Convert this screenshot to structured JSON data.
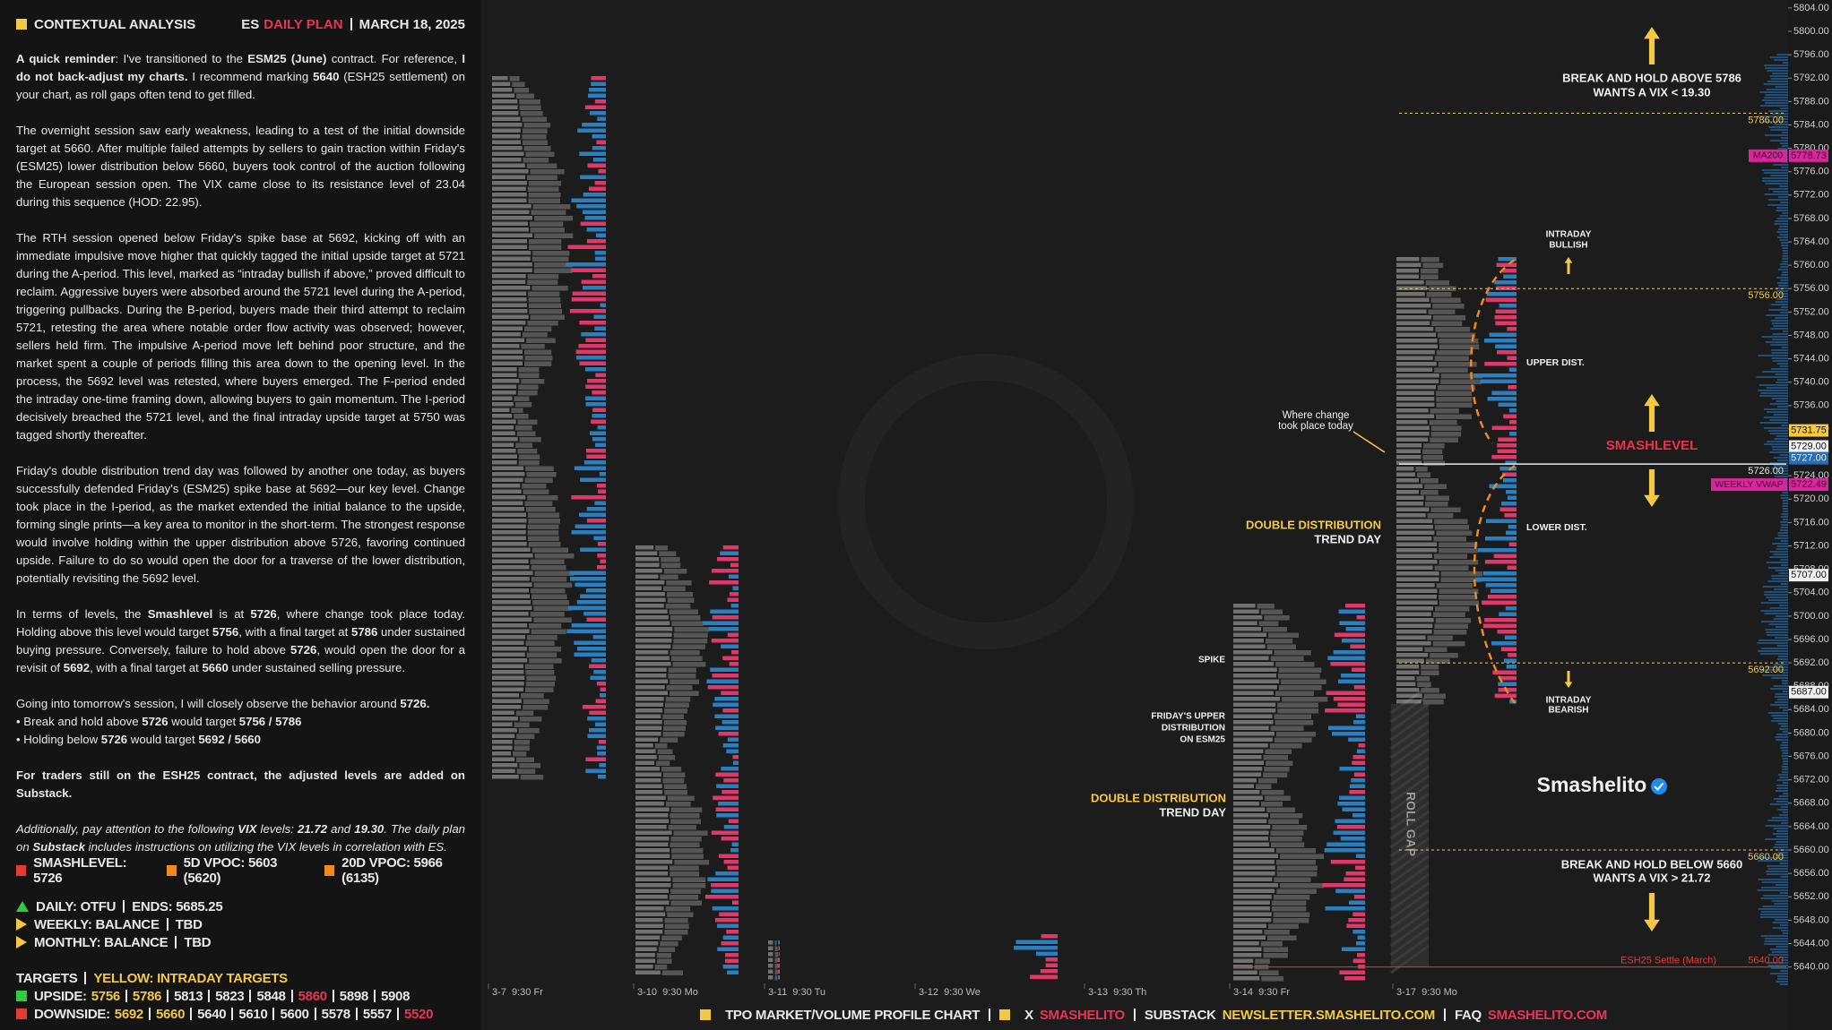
{
  "header": {
    "title": "CONTEXTUAL ANALYSIS",
    "symbol": "ES",
    "plan": "DAILY PLAN",
    "date": "MARCH 18, 2025"
  },
  "paragraphs": [
    [
      [
        {
          "t": "A quick reminder",
          "b": true
        },
        {
          "t": ": I've transitioned to the "
        },
        {
          "t": "ESM25 (June)",
          "b": true
        },
        {
          "t": " contract. For reference, "
        },
        {
          "t": "I do not back-adjust my charts.",
          "b": true
        },
        {
          "t": " I recommend marking "
        },
        {
          "t": "5640",
          "b": true
        },
        {
          "t": " (ESH25 settlement) on your chart, as roll gaps often tend to get filled."
        }
      ]
    ],
    [
      [
        {
          "t": "The overnight session saw early weakness, leading to a test of the initial downside target at 5660. After multiple failed attempts by sellers to gain traction within Friday's (ESM25) lower distribution below 5660, buyers took control of the auction following the European session open. The VIX came close to its resistance level of 23.04 during this sequence (HOD: 22.95)."
        }
      ]
    ],
    [
      [
        {
          "t": "The RTH session opened below Friday's spike base at 5692, kicking off with an immediate impulsive move higher that quickly tagged the initial upside target at 5721 during the A-period. This level, marked as “intraday bullish if above,” proved difficult to reclaim. Aggressive buyers were absorbed around the 5721 level during the A-period, triggering pullbacks. During the B-period, buyers made their third attempt to reclaim 5721, retesting the area where notable order flow activity was observed; however, sellers held firm. The impulsive A-period move left behind poor structure, and the market spent a couple of periods filling this area down to the opening level. In the process, the 5692 level was retested, where buyers emerged. The F-period ended the intraday one-time framing down, allowing buyers to gain momentum. The I-period decisively breached the 5721 level, and the final intraday upside target at 5750 was tagged shortly thereafter."
        }
      ]
    ],
    [
      [
        {
          "t": "Friday's double distribution trend day was followed by another one today, as buyers successfully defended Friday's (ESM25) spike base at 5692—our key level. Change took place in the I-period, as the market extended the initial balance to the upside, forming single prints—a key area to monitor in the short-term. The strongest response would involve holding within the upper distribution above 5726, favoring continued upside. Failure to do so would open the door for a traverse of the lower distribution, potentially revisiting the 5692 level."
        }
      ]
    ],
    [
      [
        {
          "t": "In terms of levels, the "
        },
        {
          "t": "Smashlevel",
          "b": true
        },
        {
          "t": " is at "
        },
        {
          "t": "5726",
          "b": true
        },
        {
          "t": ", where change took place today. Holding above this level would target "
        },
        {
          "t": "5756",
          "b": true
        },
        {
          "t": ", with a final target at "
        },
        {
          "t": "5786",
          "b": true
        },
        {
          "t": " under sustained buying pressure. Conversely, failure to hold above "
        },
        {
          "t": "5726",
          "b": true
        },
        {
          "t": ", would open the door for a revisit of "
        },
        {
          "t": "5692",
          "b": true
        },
        {
          "t": ", with a final target at "
        },
        {
          "t": "5660",
          "b": true
        },
        {
          "t": " under sustained selling pressure."
        }
      ]
    ],
    [
      [
        {
          "t": "Going into tomorrow's session, I will closely observe the behavior around "
        },
        {
          "t": "5726.",
          "b": true
        }
      ],
      [
        {
          "t": "• Break and hold above "
        },
        {
          "t": "5726",
          "b": true
        },
        {
          "t": " would target "
        },
        {
          "t": "5756 / 5786",
          "b": true
        }
      ],
      [
        {
          "t": "• Holding below "
        },
        {
          "t": "5726",
          "b": true
        },
        {
          "t": " would target "
        },
        {
          "t": "5692 / 5660",
          "b": true
        }
      ]
    ],
    [
      [
        {
          "t": "For traders still on the ESH25 contract, the adjusted levels are added on Substack.",
          "b": true
        }
      ]
    ],
    [
      [
        {
          "t": "Additionally, pay attention to the following ",
          "i": true
        },
        {
          "t": "VIX",
          "b": true,
          "i": true
        },
        {
          "t": " levels: ",
          "i": true
        },
        {
          "t": "21.72",
          "b": true,
          "i": true
        },
        {
          "t": " and ",
          "i": true
        },
        {
          "t": "19.30",
          "b": true,
          "i": true
        },
        {
          "t": ". The daily plan on ",
          "i": true
        },
        {
          "t": "Substack",
          "b": true,
          "i": true
        },
        {
          "t": " includes instructions on utilizing the VIX levels in correlation with ES.",
          "i": true
        }
      ]
    ]
  ],
  "vpoc": [
    {
      "text": "SMASHLEVEL: 5726",
      "color": "#e53935"
    },
    {
      "text": "5D VPOC: 5603 (5620)",
      "color": "#f08a1c"
    },
    {
      "text": "20D VPOC: 5966 (6135)",
      "color": "#f08a1c"
    }
  ],
  "bias": [
    {
      "text": "DAILY: OTFU",
      "extra": "ENDS: 5685.25",
      "marker": "up"
    },
    {
      "text": "WEEKLY: BALANCE",
      "extra": "TBD",
      "marker": "right"
    },
    {
      "text": "MONTHLY: BALANCE",
      "extra": "TBD",
      "marker": "right"
    }
  ],
  "targets": {
    "title": "TARGETS",
    "legend": "YELLOW: INTRADAY TARGETS",
    "upside": {
      "label": "UPSIDE:",
      "items": [
        {
          "text": "5756",
          "color": "#f5c842"
        },
        {
          "text": "5786",
          "color": "#f5c842"
        },
        {
          "text": "5813"
        },
        {
          "text": "5823"
        },
        {
          "text": "5848"
        },
        {
          "text": "5860",
          "color": "#e8345a"
        },
        {
          "text": "5898"
        },
        {
          "text": "5908"
        }
      ]
    },
    "downside": {
      "label": "DOWNSIDE:",
      "items": [
        {
          "text": "5692",
          "color": "#f5c842"
        },
        {
          "text": "5660",
          "color": "#f5c842"
        },
        {
          "text": "5640"
        },
        {
          "text": "5610"
        },
        {
          "text": "5600"
        },
        {
          "text": "5578"
        },
        {
          "text": "5557"
        },
        {
          "text": "5520",
          "color": "#e8345a"
        }
      ]
    }
  },
  "chart": {
    "price_axis": {
      "ticks": [
        {
          "value": 5640,
          "label": "5640.00"
        },
        {
          "value": 5644,
          "label": "5644.00"
        },
        {
          "value": 5648,
          "label": "5648.00"
        },
        {
          "value": 5652,
          "label": "5652.00"
        },
        {
          "value": 5656,
          "label": "5656.00"
        },
        {
          "value": 5660,
          "label": "5660.00"
        },
        {
          "value": 5664,
          "label": "5664.00"
        },
        {
          "value": 5668,
          "label": "5668.00"
        },
        {
          "value": 5672,
          "label": "5672.00"
        },
        {
          "value": 5676,
          "label": "5676.00"
        },
        {
          "value": 5680,
          "label": "5680.00"
        },
        {
          "value": 5684,
          "label": "5684.00"
        },
        {
          "value": 5688,
          "label": "5688.00"
        },
        {
          "value": 5692,
          "label": "5692.00"
        },
        {
          "value": 5696,
          "label": "5696.00"
        },
        {
          "value": 5700,
          "label": "5700.00"
        },
        {
          "value": 5704,
          "label": "5704.00"
        },
        {
          "value": 5708,
          "label": "5708.00"
        },
        {
          "value": 5712,
          "label": "5712.00"
        },
        {
          "value": 5716,
          "label": "5716.00"
        },
        {
          "value": 5720,
          "label": "5720.00"
        },
        {
          "value": 5724,
          "label": "5724.00"
        },
        {
          "value": 5728,
          "label": "5728.00"
        },
        {
          "value": 5732,
          "label": "5732.00"
        },
        {
          "value": 5736,
          "label": "5736.00"
        },
        {
          "value": 5740,
          "label": "5740.00"
        },
        {
          "value": 5744,
          "label": "5744.00"
        },
        {
          "value": 5748,
          "label": "5748.00"
        },
        {
          "value": 5752,
          "label": "5752.00"
        },
        {
          "value": 5756,
          "label": "5756.00"
        },
        {
          "value": 5760,
          "label": "5760.00"
        },
        {
          "value": 5764,
          "label": "5764.00"
        },
        {
          "value": 5768,
          "label": "5768.00"
        },
        {
          "value": 5772,
          "label": "5772.00"
        },
        {
          "value": 5776,
          "label": "5776.00"
        },
        {
          "value": 5780,
          "label": "5780.00"
        },
        {
          "value": 5784,
          "label": "5784.00"
        },
        {
          "value": 5788,
          "label": "5788.00"
        },
        {
          "value": 5792,
          "label": "5792.00"
        },
        {
          "value": 5796,
          "label": "5796.00"
        },
        {
          "value": 5800,
          "label": "5800.00"
        },
        {
          "value": 5804,
          "label": "5804.00"
        }
      ],
      "ylim": [
        5640,
        5800
      ]
    },
    "levels": [
      {
        "value": 5786,
        "label": "5786.00",
        "color": "#f5c842",
        "dashed": true
      },
      {
        "value": 5756,
        "label": "5756.00",
        "color": "#f5c842",
        "dashed": true
      },
      {
        "value": 5726,
        "label": "5726.00",
        "color": "#e8e8e8",
        "dashed": false
      },
      {
        "value": 5692,
        "label": "5692.00",
        "color": "#f5c842",
        "dashed": true
      },
      {
        "value": 5660,
        "label": "5660.00",
        "color": "#f5c842",
        "dashed": true
      }
    ],
    "settle": {
      "value": 5640,
      "label": "5640.00",
      "text": "ESH25 Settle (March)",
      "color": "#e53935"
    },
    "price_tags": [
      {
        "value": 5778.73,
        "label": "5778.73",
        "name": "MA200",
        "color": "#d9269b",
        "text_color": "#3a0a2a"
      },
      {
        "value": 5731.75,
        "label": "5731.75",
        "color": "#f5c842",
        "text_color": "#111"
      },
      {
        "value": 5729,
        "label": "5729.00",
        "color": "#f0f0f0",
        "text_color": "#111"
      },
      {
        "value": 5727,
        "label": "5727.00",
        "color": "#2a6db0",
        "text_color": "#e8e8e8"
      },
      {
        "value": 5722.49,
        "label": "5722.49",
        "name": "WEEKLY VWAP",
        "color": "#d9269b",
        "text_color": "#3a0a2a"
      },
      {
        "value": 5707,
        "label": "5707.00",
        "color": "#f0f0f0",
        "text_color": "#111"
      },
      {
        "value": 5687,
        "label": "5687.00",
        "color": "#f0f0f0",
        "text_color": "#111"
      }
    ],
    "sessions": [
      "3-7  9:30 Fr",
      "3-10  9:30 Mo",
      "3-11  9:30 Tu",
      "3-12  9:30 We",
      "3-13  9:30 Th",
      "3-14  9:30 Fr",
      "3-17  9:30 Mo"
    ],
    "annotations": {
      "break_above": [
        "BREAK AND HOLD ABOVE 5786",
        "WANTS A VIX < 19.30"
      ],
      "intraday_bullish": [
        "INTRADAY",
        "BULLISH"
      ],
      "upper_dist": "UPPER DIST.",
      "smashlevel": "SMASHLEVEL",
      "lower_dist": "LOWER DIST.",
      "intraday_bearish": [
        "INTRADAY",
        "BEARISH"
      ],
      "break_below": [
        "BREAK AND HOLD BELOW 5660",
        "WANTS A VIX > 21.72"
      ],
      "change": [
        "Where change",
        "took place today"
      ],
      "ddtd_today": [
        "DOUBLE DISTRIBUTION",
        "TREND DAY"
      ],
      "ddtd_friday": [
        "DOUBLE DISTRIBUTION",
        "TREND DAY"
      ],
      "spike": "SPIKE",
      "friday_upper": [
        "FRIDAY'S UPPER",
        "DISTRIBUTION",
        "ON ESM25"
      ]
    },
    "brand": "Smashelito",
    "roll_gap": "ROLL GAP"
  },
  "footer": [
    {
      "parts": [
        {
          "t": "TPO MARKET/VOLUME PROFILE CHART"
        }
      ]
    },
    {
      "parts": [
        {
          "t": "X"
        },
        {
          "t": "SMASHELITO",
          "color": "#e8345a"
        }
      ]
    },
    {
      "parts": [
        {
          "t": "SUBSTACK"
        },
        {
          "t": "NEWSLETTER.SMASHELITO.COM",
          "color": "#f5c842"
        }
      ]
    },
    {
      "parts": [
        {
          "t": "FAQ"
        },
        {
          "t": "SMASHELITO.COM",
          "color": "#e8345a"
        }
      ]
    }
  ]
}
